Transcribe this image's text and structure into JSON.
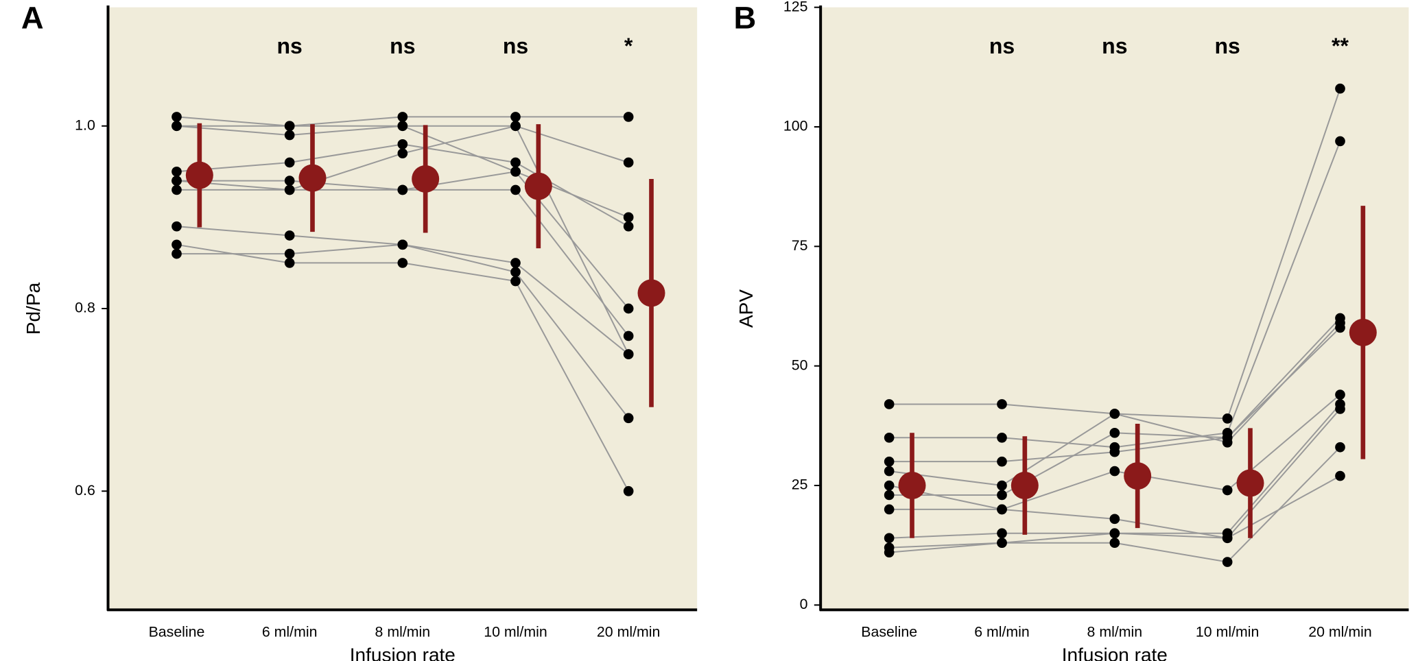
{
  "chart_data": [
    {
      "type": "dot-line",
      "panel": "A",
      "y_label": "Pd/Pa",
      "x_label": "Infusion rate",
      "categories": [
        "Baseline",
        "6 ml/min",
        "8 ml/min",
        "10 ml/min",
        "20 ml/min"
      ],
      "annotations": [
        null,
        "ns",
        "ns",
        "ns",
        "*"
      ],
      "ylim": [
        0.47,
        1.13
      ],
      "yticks": [
        0.6,
        0.8,
        {
          "value": 1,
          "label": "1.0"
        }
      ],
      "background": "#f0ecda",
      "line_color": "#999999",
      "dot_color": "#000000",
      "series": [
        {
          "values": [
            1.01,
            1.0,
            1.01,
            1.01,
            1.01
          ]
        },
        {
          "values": [
            1.0,
            1.0,
            1.0,
            1.0,
            0.96
          ]
        },
        {
          "values": [
            1.0,
            0.99,
            1.0,
            0.95,
            0.9
          ]
        },
        {
          "values": [
            0.95,
            0.96,
            0.98,
            0.96,
            0.89
          ]
        },
        {
          "values": [
            0.94,
            0.94,
            0.93,
            0.95,
            0.8
          ]
        },
        {
          "values": [
            0.93,
            0.93,
            0.93,
            0.93,
            0.77
          ]
        },
        {
          "values": [
            0.94,
            0.93,
            0.97,
            1.0,
            0.75
          ]
        },
        {
          "values": [
            0.89,
            0.88,
            0.87,
            0.84,
            0.68
          ]
        },
        {
          "values": [
            0.87,
            0.85,
            0.85,
            0.83,
            0.6
          ]
        },
        {
          "values": [
            0.86,
            0.86,
            0.87,
            0.85,
            0.75
          ]
        }
      ],
      "mean": {
        "values": [
          0.946,
          0.943,
          0.942,
          0.934,
          0.817
        ],
        "errors": [
          0.057,
          0.059,
          0.059,
          0.068,
          0.125
        ],
        "color": "#8b1a1a"
      }
    },
    {
      "type": "dot-line",
      "panel": "B",
      "y_label": "APV",
      "x_label": "Infusion rate",
      "categories": [
        "Baseline",
        "6 ml/min",
        "8 ml/min",
        "10 ml/min",
        "20 ml/min"
      ],
      "annotations": [
        null,
        "ns",
        "ns",
        "ns",
        "**"
      ],
      "ylim": [
        -1,
        125
      ],
      "yticks": [
        0,
        25,
        50,
        75,
        100,
        125
      ],
      "background": "#f0ecda",
      "line_color": "#999999",
      "dot_color": "#000000",
      "series": [
        {
          "values": [
            42,
            42,
            40,
            39,
            108
          ]
        },
        {
          "values": [
            35,
            35,
            33,
            36,
            97
          ]
        },
        {
          "values": [
            30,
            30,
            32,
            35,
            60
          ]
        },
        {
          "values": [
            28,
            25,
            40,
            34,
            59
          ]
        },
        {
          "values": [
            23,
            23,
            36,
            35,
            58
          ]
        },
        {
          "values": [
            20,
            20,
            28,
            24,
            44
          ]
        },
        {
          "values": [
            14,
            15,
            15,
            15,
            42
          ]
        },
        {
          "values": [
            12,
            13,
            15,
            14,
            41
          ]
        },
        {
          "values": [
            11,
            13,
            13,
            9,
            33
          ]
        },
        {
          "values": [
            25,
            20,
            18,
            14,
            27
          ]
        }
      ],
      "mean": {
        "values": [
          25,
          25,
          27,
          25.5,
          57
        ],
        "errors": [
          11,
          10.3,
          10.9,
          11.5,
          26.5
        ],
        "color": "#8b1a1a"
      }
    }
  ]
}
